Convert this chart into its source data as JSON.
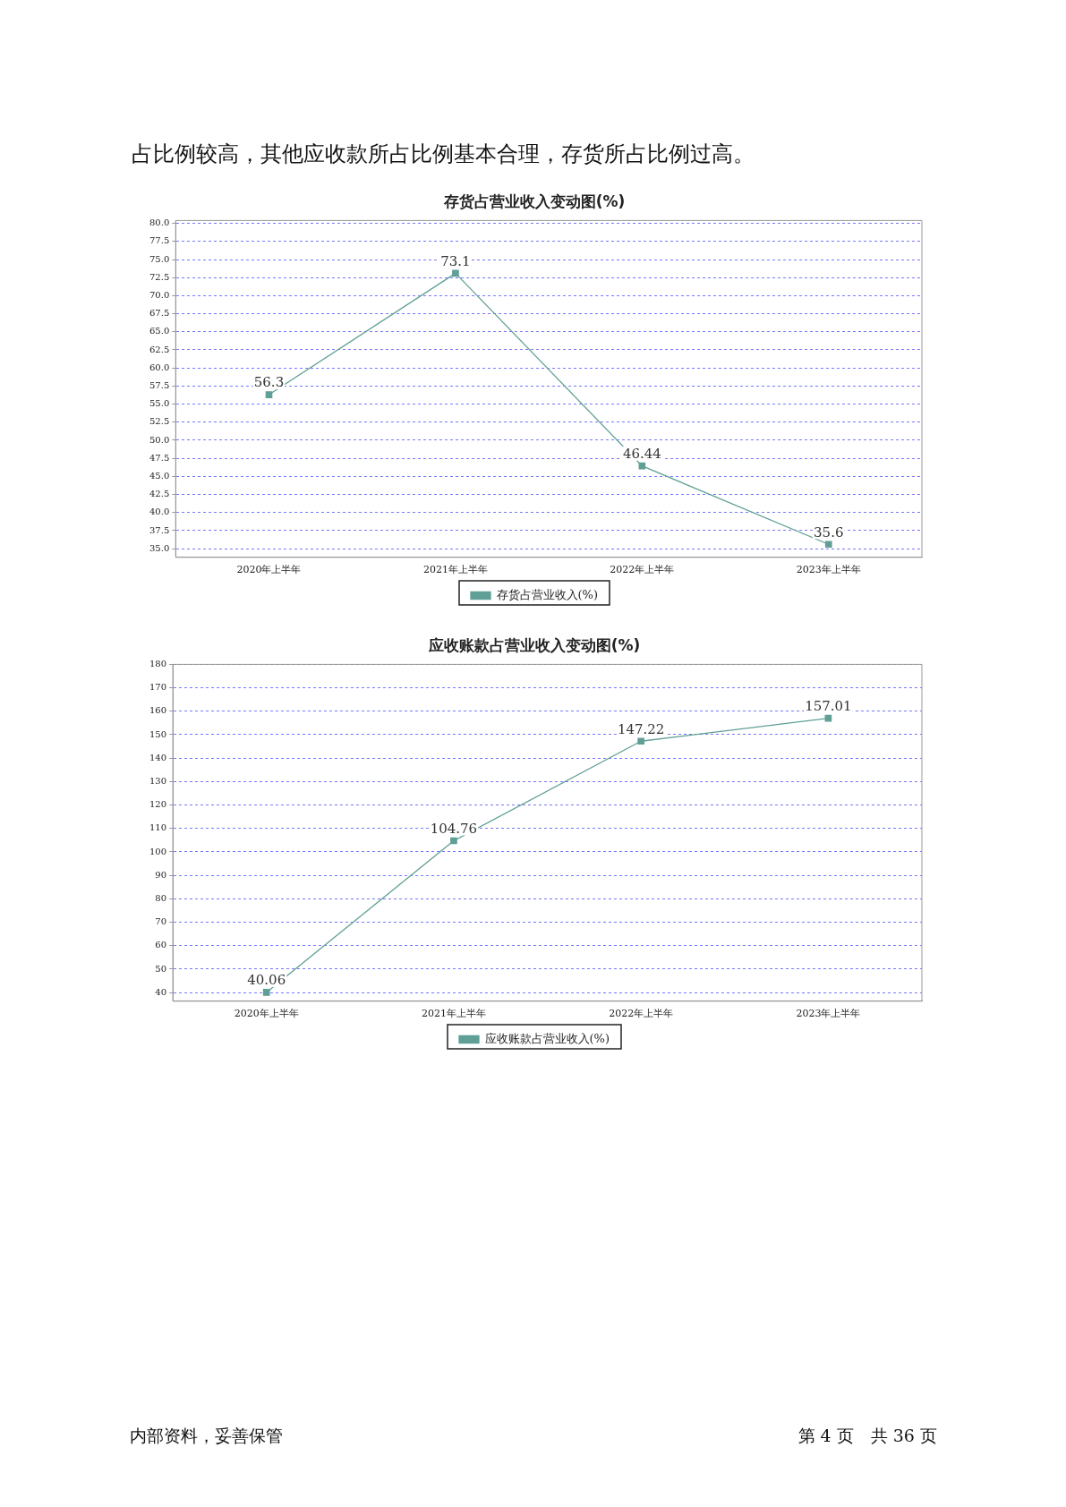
{
  "chart_data": [
    {
      "type": "line",
      "title": "存货占营业收入变动图(%)",
      "categories": [
        "2020年上半年",
        "2021年上半年",
        "2022年上半年",
        "2023年上半年"
      ],
      "series": [
        {
          "name": "存货占营业收入(%)",
          "color": "#5f9f96",
          "values": [
            56.3,
            73.1,
            46.44,
            35.6
          ]
        }
      ],
      "ylim": [
        33.8,
        80.4
      ],
      "yticks": [
        {
          "value": 35,
          "label": "35.0"
        },
        37.5,
        {
          "value": 40,
          "label": "40.0"
        },
        42.5,
        {
          "value": 45,
          "label": "45.0"
        },
        47.5,
        {
          "value": 50,
          "label": "50.0"
        },
        52.5,
        {
          "value": 55,
          "label": "55.0"
        },
        57.5,
        {
          "value": 60,
          "label": "60.0"
        },
        62.5,
        {
          "value": 65,
          "label": "65.0"
        },
        67.5,
        {
          "value": 70,
          "label": "70.0"
        },
        72.5,
        {
          "value": 75,
          "label": "75.0"
        },
        77.5,
        {
          "value": 80,
          "label": "80.0"
        }
      ],
      "grid": "y",
      "legend": "bottom",
      "marker": "square",
      "line_style": "solid",
      "data_labels": true,
      "annotations": [
        "占比例较高，其他应收款所占比例基本合理，存货所占比例过高。"
      ]
    },
    {
      "type": "line",
      "title": "应收账款占营业收入变动图(%)",
      "categories": [
        "2020年上半年",
        "2021年上半年",
        "2022年上半年",
        "2023年上半年"
      ],
      "series": [
        {
          "name": "应收账款占营业收入(%)",
          "color": "#5f9f96",
          "values": [
            40.06,
            104.76,
            147.22,
            157.01
          ]
        }
      ],
      "ylim": [
        36.3,
        180
      ],
      "yticks": [
        40,
        50,
        60,
        70,
        80,
        90,
        100,
        110,
        120,
        130,
        140,
        150,
        160,
        170,
        180
      ],
      "grid": "y",
      "legend": "bottom",
      "marker": "square",
      "line_style": "solid",
      "data_labels": true,
      "annotations": [
        "内部资料，妥善保管",
        "第 4 页　共 36 页"
      ]
    }
  ]
}
